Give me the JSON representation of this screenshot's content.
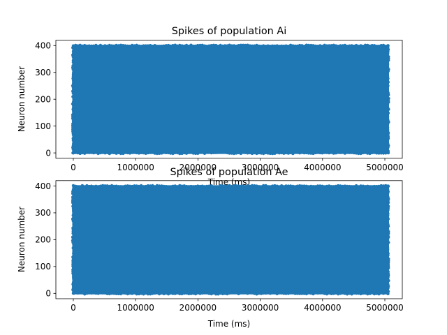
{
  "chart_data": [
    {
      "type": "scatter",
      "title": "Spikes of population Ai",
      "xlabel": "Time (ms)",
      "ylabel": "Neuron number",
      "xlim": [
        -280000,
        5280000
      ],
      "ylim": [
        -20,
        420
      ],
      "xticks": [
        0,
        1000000,
        2000000,
        3000000,
        4000000,
        5000000
      ],
      "xtick_labels": [
        "0",
        "1000000",
        "2000000",
        "3000000",
        "4000000",
        "5000000"
      ],
      "yticks": [
        0,
        100,
        200,
        300,
        400
      ],
      "ytick_labels": [
        "0",
        "100",
        "200",
        "300",
        "400"
      ],
      "series": [
        {
          "name": "",
          "color": "#1f77b4",
          "x_range": [
            0,
            5050000
          ],
          "y_range": [
            0,
            399
          ],
          "neurons": 400,
          "distribution": "dense-uniform"
        }
      ],
      "grid": false
    },
    {
      "type": "scatter",
      "title": "Spikes of population Ae",
      "xlabel": "Time (ms)",
      "ylabel": "Neuron number",
      "xlim": [
        -280000,
        5280000
      ],
      "ylim": [
        -20,
        420
      ],
      "xticks": [
        0,
        1000000,
        2000000,
        3000000,
        4000000,
        5000000
      ],
      "xtick_labels": [
        "0",
        "1000000",
        "2000000",
        "3000000",
        "4000000",
        "5000000"
      ],
      "yticks": [
        0,
        100,
        200,
        300,
        400
      ],
      "ytick_labels": [
        "0",
        "100",
        "200",
        "300",
        "400"
      ],
      "series": [
        {
          "name": "",
          "color": "#1f77b4",
          "x_range": [
            0,
            5050000
          ],
          "y_range": [
            0,
            399
          ],
          "neurons": 400,
          "distribution": "dense-uniform"
        }
      ],
      "grid": false
    }
  ]
}
